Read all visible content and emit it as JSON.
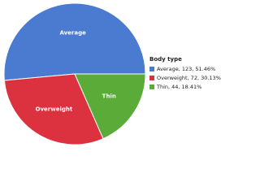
{
  "chart_data": {
    "type": "pie",
    "legend_title": "Body type",
    "categories": [
      "Average",
      "Overweight",
      "Thin"
    ],
    "values": [
      123,
      72,
      44
    ],
    "legend_labels": [
      "Average, 123, 51.46%",
      "Overweight, 72, 30.13%",
      "Thin, 44, 18.41%"
    ],
    "colors": [
      "#4a7bd0",
      "#dc3240",
      "#5aab37"
    ],
    "legend": "right"
  }
}
